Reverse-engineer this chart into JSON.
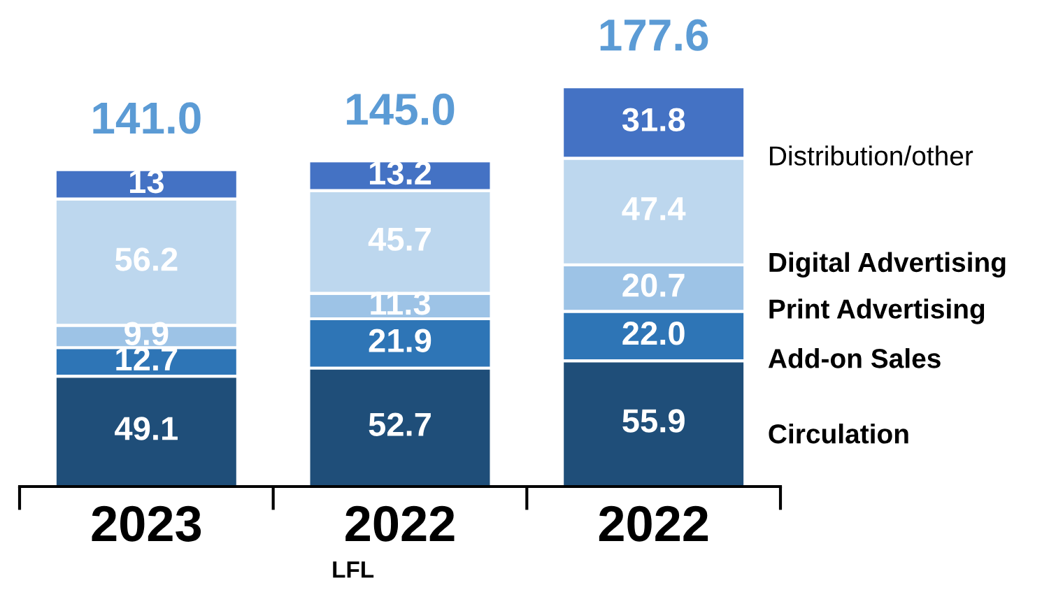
{
  "chart_data": {
    "type": "bar",
    "stacked": true,
    "categories": [
      "2023",
      "2022\nLFL",
      "2022"
    ],
    "series": [
      {
        "name": "Circulation",
        "color": "#1f4e79",
        "values": [
          49.1,
          52.7,
          55.9
        ],
        "value_labels": [
          "49.1",
          "52.7",
          "55.9"
        ]
      },
      {
        "name": "Add-on Sales",
        "color": "#2e75b6",
        "values": [
          12.7,
          21.9,
          22.0
        ],
        "value_labels": [
          "12.7",
          "21.9",
          "22.0"
        ]
      },
      {
        "name": "Print Advertising",
        "color": "#9dc3e6",
        "values": [
          9.9,
          11.3,
          20.7
        ],
        "value_labels": [
          "9.9",
          "11.3",
          "20.7"
        ]
      },
      {
        "name": "Digital Advertising",
        "color": "#bdd7ee",
        "values": [
          56.2,
          45.7,
          47.4
        ],
        "value_labels": [
          "56.2",
          "45.7",
          "47.4"
        ]
      },
      {
        "name": "Distribution/other",
        "color": "#4472c4",
        "values": [
          13,
          13.2,
          31.8
        ],
        "value_labels": [
          "13",
          "13.2",
          "31.8"
        ]
      }
    ],
    "totals": [
      "141.0",
      "145.0",
      "177.6"
    ],
    "grid": false,
    "legend": false
  }
}
